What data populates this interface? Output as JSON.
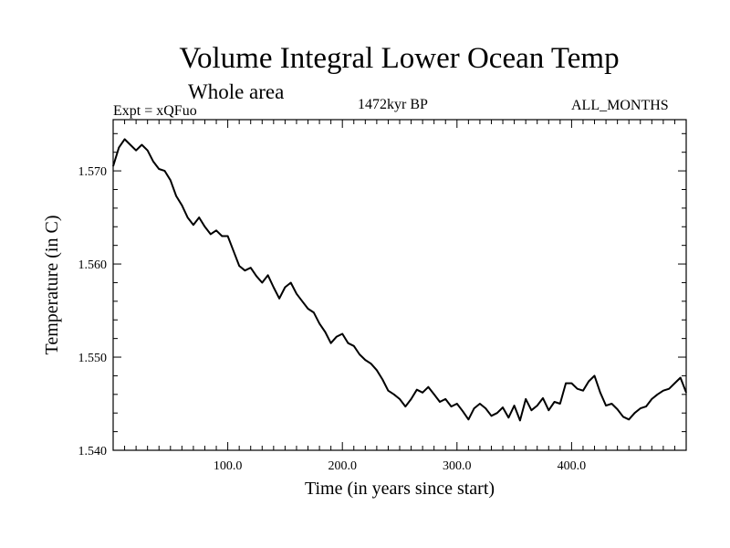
{
  "header": {
    "title": "Volume Integral Lower Ocean Temp",
    "subtitle": "Whole area",
    "experiment": "Expt = xQFuo",
    "period": "1472kyr BP",
    "months": "ALL_MONTHS"
  },
  "chart_data": {
    "type": "line",
    "title": "Volume Integral Lower Ocean Temp",
    "xlabel": "Time (in years since start)",
    "ylabel": "Temperature (in C)",
    "xlim": [
      0,
      500
    ],
    "ylim": [
      1.54,
      1.5755
    ],
    "x_ticks": [
      100,
      200,
      300,
      400
    ],
    "x_tick_labels": [
      "100.0",
      "200.0",
      "300.0",
      "400.0"
    ],
    "y_ticks": [
      1.54,
      1.55,
      1.56,
      1.57
    ],
    "y_tick_labels": [
      "1.540",
      "1.550",
      "1.560",
      "1.570"
    ],
    "grid": false,
    "series": [
      {
        "name": "Temperature",
        "x": [
          0,
          5,
          10,
          15,
          20,
          25,
          30,
          35,
          40,
          45,
          50,
          55,
          60,
          65,
          70,
          75,
          80,
          85,
          90,
          95,
          100,
          105,
          110,
          115,
          120,
          125,
          130,
          135,
          140,
          145,
          150,
          155,
          160,
          165,
          170,
          175,
          180,
          185,
          190,
          195,
          200,
          205,
          210,
          215,
          220,
          225,
          230,
          235,
          240,
          245,
          250,
          255,
          260,
          265,
          270,
          275,
          280,
          285,
          290,
          295,
          300,
          305,
          310,
          315,
          320,
          325,
          330,
          335,
          340,
          345,
          350,
          355,
          360,
          365,
          370,
          375,
          380,
          385,
          390,
          395,
          400,
          405,
          410,
          415,
          420,
          425,
          430,
          435,
          440,
          445,
          450,
          455,
          460,
          465,
          470,
          475,
          480,
          485,
          490,
          495,
          500
        ],
        "values": [
          1.5705,
          1.5725,
          1.5734,
          1.5728,
          1.5722,
          1.5728,
          1.5722,
          1.571,
          1.5702,
          1.57,
          1.569,
          1.5673,
          1.5663,
          1.565,
          1.5642,
          1.565,
          1.564,
          1.5632,
          1.5636,
          1.563,
          1.563,
          1.5614,
          1.5598,
          1.5593,
          1.5596,
          1.5587,
          1.558,
          1.5588,
          1.5575,
          1.5563,
          1.5575,
          1.558,
          1.5568,
          1.556,
          1.5552,
          1.5548,
          1.5536,
          1.5527,
          1.5515,
          1.5522,
          1.5525,
          1.5515,
          1.5512,
          1.5503,
          1.5497,
          1.5493,
          1.5486,
          1.5476,
          1.5464,
          1.546,
          1.5455,
          1.5447,
          1.5455,
          1.5465,
          1.5462,
          1.5468,
          1.546,
          1.5452,
          1.5455,
          1.5447,
          1.545,
          1.5442,
          1.5433,
          1.5445,
          1.545,
          1.5445,
          1.5437,
          1.544,
          1.5446,
          1.5435,
          1.5448,
          1.5432,
          1.5455,
          1.5443,
          1.5448,
          1.5456,
          1.5443,
          1.5452,
          1.545,
          1.5472,
          1.5472,
          1.5466,
          1.5464,
          1.5474,
          1.548,
          1.5462,
          1.5448,
          1.545,
          1.5444,
          1.5436,
          1.5433,
          1.544,
          1.5445,
          1.5447,
          1.5455,
          1.546,
          1.5464,
          1.5466,
          1.5472,
          1.5478,
          1.5462
        ]
      }
    ]
  }
}
